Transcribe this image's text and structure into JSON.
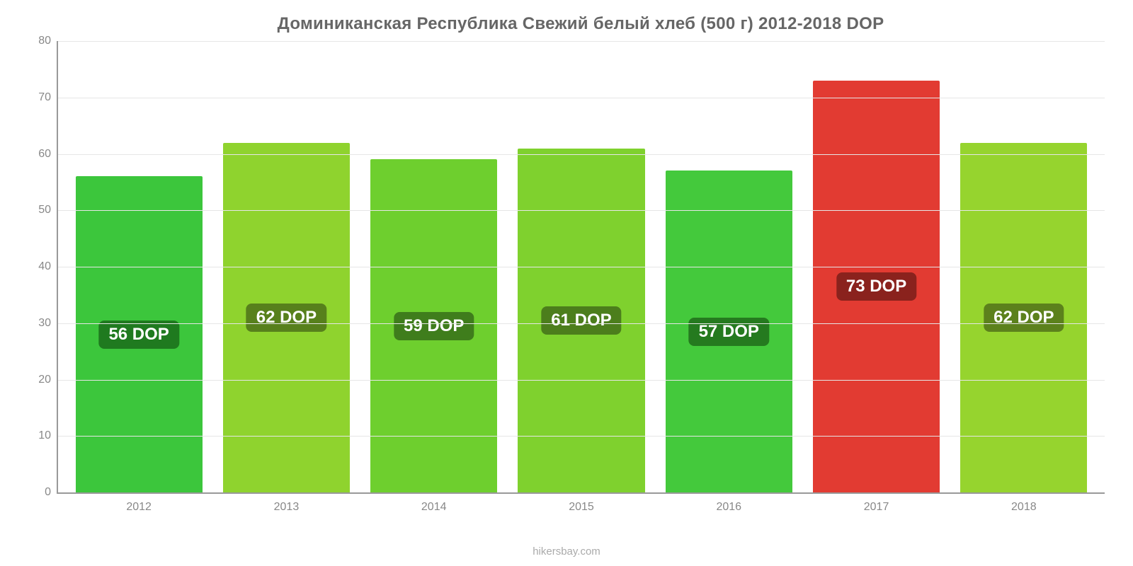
{
  "chart": {
    "type": "bar",
    "title": "Доминиканская Республика Свежий белый хлеб (500 г) 2012-2018 DOP",
    "title_fontsize": 24,
    "title_color": "#666666",
    "footer": "hikersbay.com",
    "footer_color": "#aaaaaa",
    "background_color": "#ffffff",
    "axis_color": "#999999",
    "grid_color": "#e6e6e6",
    "tick_label_color": "#888888",
    "tick_fontsize": 16,
    "ylim": [
      0,
      80
    ],
    "ytick_step": 10,
    "yticks": [
      {
        "value": 0,
        "label": "0"
      },
      {
        "value": 10,
        "label": "10"
      },
      {
        "value": 20,
        "label": "20"
      },
      {
        "value": 30,
        "label": "30"
      },
      {
        "value": 40,
        "label": "40"
      },
      {
        "value": 50,
        "label": "50"
      },
      {
        "value": 60,
        "label": "60"
      },
      {
        "value": 70,
        "label": "70"
      },
      {
        "value": 80,
        "label": "80"
      }
    ],
    "bar_width_ratio": 0.86,
    "value_label_fontsize": 24,
    "categories": [
      "2012",
      "2013",
      "2014",
      "2015",
      "2016",
      "2017",
      "2018"
    ],
    "series": [
      {
        "year": "2012",
        "value": 56,
        "label": "56 DOP",
        "bar_color": "#3cc63c",
        "label_bg": "#1f7a1f"
      },
      {
        "year": "2013",
        "value": 62,
        "label": "62 DOP",
        "bar_color": "#8fd32e",
        "label_bg": "#57801c"
      },
      {
        "year": "2014",
        "value": 59,
        "label": "59 DOP",
        "bar_color": "#6ecf2e",
        "label_bg": "#3f7d1c"
      },
      {
        "year": "2015",
        "value": 61,
        "label": "61 DOP",
        "bar_color": "#7fd12e",
        "label_bg": "#4c7e1c"
      },
      {
        "year": "2016",
        "value": 57,
        "label": "57 DOP",
        "bar_color": "#44c93c",
        "label_bg": "#257a1f"
      },
      {
        "year": "2017",
        "value": 73,
        "label": "73 DOP",
        "bar_color": "#e23b32",
        "label_bg": "#8a221d"
      },
      {
        "year": "2018",
        "value": 62,
        "label": "62 DOP",
        "bar_color": "#96d42e",
        "label_bg": "#5c811c"
      }
    ]
  }
}
